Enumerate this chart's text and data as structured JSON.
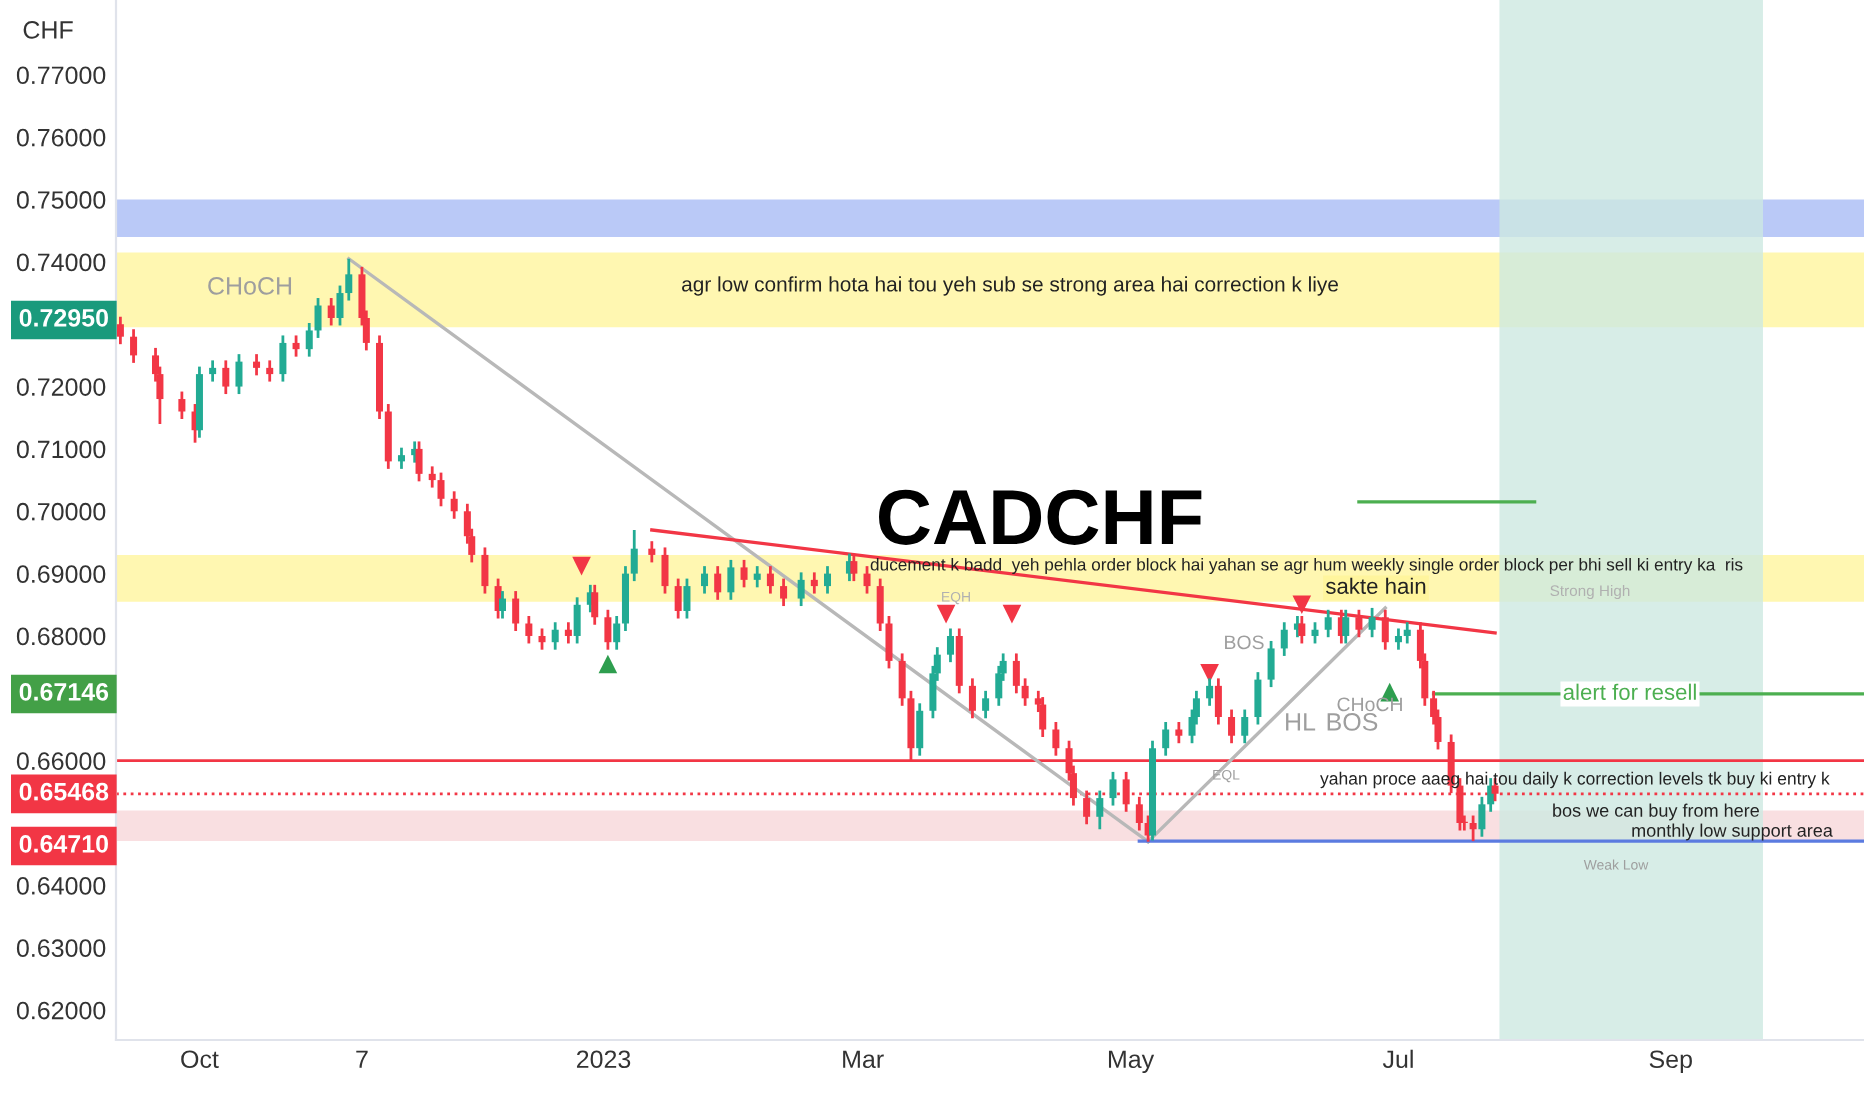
{
  "chart_data": {
    "type": "candlestick",
    "title": "CADCHF",
    "ylabel": "CHF",
    "x": [
      "2022-09-13",
      "2022-09-16",
      "2022-09-21",
      "2022-09-22",
      "2022-09-27",
      "2022-09-30",
      "2022-10-01",
      "2022-10-04",
      "2022-10-07",
      "2022-10-10",
      "2022-10-14",
      "2022-10-17",
      "2022-10-20",
      "2022-10-23",
      "2022-10-26",
      "2022-10-28",
      "2022-10-31",
      "2022-11-02",
      "2022-11-04",
      "2022-11-07",
      "2022-11-08",
      "2022-11-11",
      "2022-11-13",
      "2022-11-16",
      "2022-11-19",
      "2022-11-20",
      "2022-11-23",
      "2022-11-25",
      "2022-11-28",
      "2022-12-01",
      "2022-12-02",
      "2022-12-05",
      "2022-12-08",
      "2022-12-09",
      "2022-12-12",
      "2022-12-15",
      "2022-12-18",
      "2022-12-21",
      "2022-12-24",
      "2022-12-26",
      "2022-12-29",
      "2022-12-30",
      "2023-01-02",
      "2023-01-04",
      "2023-01-06",
      "2023-01-08",
      "2023-01-12",
      "2023-01-15",
      "2023-01-18",
      "2023-01-20",
      "2023-01-24",
      "2023-01-27",
      "2023-01-30",
      "2023-02-02",
      "2023-02-05",
      "2023-02-08",
      "2023-02-11",
      "2023-02-15",
      "2023-02-18",
      "2023-02-21",
      "2023-02-26",
      "2023-02-27",
      "2023-03-02",
      "2023-03-05",
      "2023-03-07",
      "2023-03-10",
      "2023-03-12",
      "2023-03-14",
      "2023-03-17",
      "2023-03-18",
      "2023-03-21",
      "2023-03-23",
      "2023-03-26",
      "2023-03-29",
      "2023-04-01",
      "2023-04-02",
      "2023-04-05",
      "2023-04-07",
      "2023-04-10",
      "2023-04-11",
      "2023-04-14",
      "2023-04-17",
      "2023-04-18",
      "2023-04-21",
      "2023-04-24",
      "2023-04-27",
      "2023-04-30",
      "2023-05-03",
      "2023-05-05",
      "2023-05-06",
      "2023-05-09",
      "2023-05-12",
      "2023-05-15",
      "2023-05-16",
      "2023-05-19",
      "2023-05-21",
      "2023-05-24",
      "2023-05-27",
      "2023-05-30",
      "2023-06-02",
      "2023-06-05",
      "2023-06-08",
      "2023-06-09",
      "2023-06-12",
      "2023-06-15",
      "2023-06-18",
      "2023-06-19",
      "2023-06-22",
      "2023-06-25",
      "2023-06-28",
      "2023-07-01",
      "2023-07-03",
      "2023-07-06",
      "2023-07-07",
      "2023-07-09",
      "2023-07-10",
      "2023-07-13",
      "2023-07-15",
      "2023-07-16",
      "2023-07-18",
      "2023-07-20",
      "2023-07-22",
      "2023-07-23"
    ],
    "ohlc": [
      [
        0.73,
        0.7312,
        0.7268,
        0.728
      ],
      [
        0.728,
        0.7292,
        0.7238,
        0.725
      ],
      [
        0.725,
        0.7262,
        0.7208,
        0.722
      ],
      [
        0.722,
        0.7232,
        0.714,
        0.718
      ],
      [
        0.718,
        0.7192,
        0.7148,
        0.716
      ],
      [
        0.716,
        0.7172,
        0.711,
        0.713
      ],
      [
        0.713,
        0.7232,
        0.7118,
        0.722
      ],
      [
        0.722,
        0.7242,
        0.7208,
        0.723
      ],
      [
        0.723,
        0.7242,
        0.7188,
        0.72
      ],
      [
        0.72,
        0.7252,
        0.7188,
        0.724
      ],
      [
        0.724,
        0.7252,
        0.7218,
        0.723
      ],
      [
        0.723,
        0.7242,
        0.7208,
        0.722
      ],
      [
        0.722,
        0.7282,
        0.7208,
        0.727
      ],
      [
        0.727,
        0.7282,
        0.7248,
        0.726
      ],
      [
        0.726,
        0.7302,
        0.7248,
        0.729
      ],
      [
        0.729,
        0.7342,
        0.7278,
        0.733
      ],
      [
        0.733,
        0.7342,
        0.7298,
        0.731
      ],
      [
        0.731,
        0.7362,
        0.7298,
        0.735
      ],
      [
        0.735,
        0.7405,
        0.7338,
        0.738
      ],
      [
        0.738,
        0.7392,
        0.7298,
        0.731
      ],
      [
        0.731,
        0.7322,
        0.7258,
        0.727
      ],
      [
        0.727,
        0.7282,
        0.7148,
        0.716
      ],
      [
        0.716,
        0.7172,
        0.7068,
        0.708
      ],
      [
        0.708,
        0.7102,
        0.7068,
        0.709
      ],
      [
        0.709,
        0.7112,
        0.7078,
        0.71
      ],
      [
        0.71,
        0.7112,
        0.7048,
        0.706
      ],
      [
        0.706,
        0.7072,
        0.7038,
        0.705
      ],
      [
        0.705,
        0.7062,
        0.7008,
        0.702
      ],
      [
        0.702,
        0.7032,
        0.6988,
        0.7
      ],
      [
        0.7,
        0.7012,
        0.6948,
        0.696
      ],
      [
        0.696,
        0.6972,
        0.6918,
        0.693
      ],
      [
        0.693,
        0.6942,
        0.6868,
        0.688
      ],
      [
        0.688,
        0.6892,
        0.6828,
        0.684
      ],
      [
        0.684,
        0.6872,
        0.6828,
        0.686
      ],
      [
        0.686,
        0.6872,
        0.6808,
        0.682
      ],
      [
        0.682,
        0.6832,
        0.6788,
        0.68
      ],
      [
        0.68,
        0.6812,
        0.6778,
        0.679
      ],
      [
        0.679,
        0.6822,
        0.6778,
        0.681
      ],
      [
        0.681,
        0.6822,
        0.6788,
        0.68
      ],
      [
        0.68,
        0.6862,
        0.6788,
        0.685
      ],
      [
        0.685,
        0.6882,
        0.6838,
        0.687
      ],
      [
        0.687,
        0.6882,
        0.6818,
        0.683
      ],
      [
        0.683,
        0.6842,
        0.6778,
        0.679
      ],
      [
        0.679,
        0.6832,
        0.6778,
        0.682
      ],
      [
        0.682,
        0.6912,
        0.6808,
        0.69
      ],
      [
        0.69,
        0.697,
        0.6888,
        0.694
      ],
      [
        0.694,
        0.6952,
        0.6918,
        0.693
      ],
      [
        0.693,
        0.6942,
        0.6868,
        0.688
      ],
      [
        0.688,
        0.6892,
        0.6828,
        0.684
      ],
      [
        0.684,
        0.6892,
        0.6828,
        0.688
      ],
      [
        0.688,
        0.6912,
        0.6868,
        0.69
      ],
      [
        0.69,
        0.6912,
        0.6858,
        0.687
      ],
      [
        0.687,
        0.6922,
        0.6858,
        0.691
      ],
      [
        0.691,
        0.6922,
        0.6878,
        0.689
      ],
      [
        0.689,
        0.6912,
        0.6878,
        0.69
      ],
      [
        0.69,
        0.6912,
        0.6868,
        0.688
      ],
      [
        0.688,
        0.6892,
        0.6848,
        0.686
      ],
      [
        0.686,
        0.6902,
        0.6848,
        0.689
      ],
      [
        0.689,
        0.6902,
        0.6868,
        0.688
      ],
      [
        0.688,
        0.6912,
        0.6868,
        0.69
      ],
      [
        0.69,
        0.6932,
        0.6888,
        0.692
      ],
      [
        0.692,
        0.6932,
        0.6888,
        0.69
      ],
      [
        0.69,
        0.6912,
        0.6868,
        0.688
      ],
      [
        0.688,
        0.6892,
        0.6808,
        0.682
      ],
      [
        0.682,
        0.6832,
        0.6748,
        0.676
      ],
      [
        0.676,
        0.6772,
        0.6688,
        0.67
      ],
      [
        0.67,
        0.6712,
        0.66,
        0.662
      ],
      [
        0.662,
        0.6692,
        0.6608,
        0.668
      ],
      [
        0.668,
        0.6752,
        0.6668,
        0.674
      ],
      [
        0.674,
        0.6782,
        0.6728,
        0.677
      ],
      [
        0.677,
        0.6812,
        0.6758,
        0.68
      ],
      [
        0.68,
        0.6812,
        0.6708,
        0.672
      ],
      [
        0.672,
        0.6732,
        0.6668,
        0.668
      ],
      [
        0.668,
        0.6712,
        0.6668,
        0.67
      ],
      [
        0.67,
        0.6752,
        0.6688,
        0.674
      ],
      [
        0.674,
        0.6772,
        0.6728,
        0.676
      ],
      [
        0.676,
        0.6772,
        0.6708,
        0.672
      ],
      [
        0.672,
        0.6732,
        0.6688,
        0.67
      ],
      [
        0.67,
        0.6712,
        0.6678,
        0.669
      ],
      [
        0.669,
        0.6702,
        0.6638,
        0.665
      ],
      [
        0.665,
        0.6662,
        0.6608,
        0.662
      ],
      [
        0.662,
        0.6632,
        0.6568,
        0.658
      ],
      [
        0.658,
        0.6592,
        0.6528,
        0.654
      ],
      [
        0.654,
        0.6552,
        0.6498,
        0.651
      ],
      [
        0.651,
        0.6552,
        0.649,
        0.654
      ],
      [
        0.654,
        0.6582,
        0.6528,
        0.657
      ],
      [
        0.657,
        0.6582,
        0.6518,
        0.653
      ],
      [
        0.653,
        0.6542,
        0.6488,
        0.65
      ],
      [
        0.65,
        0.6512,
        0.647,
        0.648
      ],
      [
        0.648,
        0.6632,
        0.6472,
        0.662
      ],
      [
        0.662,
        0.6662,
        0.6608,
        0.665
      ],
      [
        0.665,
        0.6662,
        0.6628,
        0.664
      ],
      [
        0.664,
        0.6682,
        0.6628,
        0.667
      ],
      [
        0.667,
        0.6712,
        0.6658,
        0.67
      ],
      [
        0.67,
        0.6732,
        0.6688,
        0.672
      ],
      [
        0.672,
        0.6732,
        0.6658,
        0.667
      ],
      [
        0.667,
        0.6682,
        0.6628,
        0.664
      ],
      [
        0.664,
        0.6682,
        0.6628,
        0.667
      ],
      [
        0.667,
        0.6742,
        0.6658,
        0.673
      ],
      [
        0.673,
        0.6792,
        0.6718,
        0.678
      ],
      [
        0.678,
        0.6822,
        0.6768,
        0.681
      ],
      [
        0.681,
        0.6832,
        0.6798,
        0.682
      ],
      [
        0.682,
        0.6832,
        0.6788,
        0.68
      ],
      [
        0.68,
        0.6822,
        0.6788,
        0.681
      ],
      [
        0.681,
        0.6842,
        0.6798,
        0.683
      ],
      [
        0.683,
        0.6842,
        0.6788,
        0.68
      ],
      [
        0.68,
        0.6842,
        0.6788,
        0.683
      ],
      [
        0.683,
        0.6842,
        0.6798,
        0.681
      ],
      [
        0.681,
        0.6845,
        0.6798,
        0.683
      ],
      [
        0.683,
        0.6842,
        0.6778,
        0.679
      ],
      [
        0.679,
        0.6812,
        0.6778,
        0.68
      ],
      [
        0.68,
        0.6822,
        0.6788,
        0.681
      ],
      [
        0.681,
        0.6822,
        0.6748,
        0.676
      ],
      [
        0.676,
        0.6772,
        0.6688,
        0.67
      ],
      [
        0.67,
        0.6712,
        0.6658,
        0.667
      ],
      [
        0.667,
        0.6682,
        0.6618,
        0.663
      ],
      [
        0.663,
        0.6642,
        0.6548,
        0.656
      ],
      [
        0.656,
        0.6572,
        0.6488,
        0.65
      ],
      [
        0.65,
        0.6512,
        0.6488,
        0.65
      ],
      [
        0.65,
        0.6512,
        0.6471,
        0.649
      ],
      [
        0.649,
        0.6542,
        0.6478,
        0.653
      ],
      [
        0.653,
        0.6572,
        0.6518,
        0.656
      ],
      [
        0.656,
        0.6572,
        0.6535,
        0.6547
      ]
    ],
    "colors": [
      "#f23645",
      "#f23645",
      "#f23645",
      "#f23645",
      "#f23645",
      "#f23645",
      "#22ab94",
      "#22ab94",
      "#f23645",
      "#22ab94",
      "#f23645",
      "#f23645",
      "#22ab94",
      "#f23645",
      "#22ab94",
      "#22ab94",
      "#f23645",
      "#22ab94",
      "#22ab94",
      "#f23645",
      "#f23645",
      "#f23645",
      "#f23645",
      "#22ab94",
      "#22ab94",
      "#f23645",
      "#f23645",
      "#f23645",
      "#f23645",
      "#f23645",
      "#f23645",
      "#f23645",
      "#f23645",
      "#22ab94",
      "#f23645",
      "#f23645",
      "#f23645",
      "#22ab94",
      "#f23645",
      "#22ab94",
      "#22ab94",
      "#f23645",
      "#f23645",
      "#22ab94",
      "#22ab94",
      "#22ab94",
      "#f23645",
      "#f23645",
      "#f23645",
      "#22ab94",
      "#22ab94",
      "#f23645",
      "#22ab94",
      "#f23645",
      "#22ab94",
      "#f23645",
      "#f23645",
      "#22ab94",
      "#f23645",
      "#22ab94",
      "#22ab94",
      "#f23645",
      "#f23645",
      "#f23645",
      "#f23645",
      "#f23645",
      "#f23645",
      "#22ab94",
      "#22ab94",
      "#22ab94",
      "#22ab94",
      "#f23645",
      "#f23645",
      "#22ab94",
      "#22ab94",
      "#22ab94",
      "#f23645",
      "#f23645",
      "#f23645",
      "#f23645",
      "#f23645",
      "#f23645",
      "#f23645",
      "#f23645",
      "#22ab94",
      "#22ab94",
      "#f23645",
      "#f23645",
      "#f23645",
      "#22ab94",
      "#22ab94",
      "#f23645",
      "#22ab94",
      "#22ab94",
      "#22ab94",
      "#f23645",
      "#f23645",
      "#22ab94",
      "#22ab94",
      "#22ab94",
      "#22ab94",
      "#22ab94",
      "#f23645",
      "#22ab94",
      "#22ab94",
      "#f23645",
      "#22ab94",
      "#f23645",
      "#22ab94",
      "#f23645",
      "#22ab94",
      "#22ab94",
      "#f23645",
      "#f23645",
      "#f23645",
      "#f23645",
      "#f23645",
      "#f23645",
      "#f23645",
      "#f23645",
      "#22ab94",
      "#22ab94",
      "#f23645"
    ],
    "series": [
      {
        "type": "line",
        "color": "#b8b8b8",
        "x": [
          "2022-11-04",
          "2023-05-05"
        ],
        "values": [
          0.7405,
          0.647
        ]
      },
      {
        "type": "line",
        "color": "#b8b8b8",
        "x": [
          "2023-05-05",
          "2023-06-28"
        ],
        "values": [
          0.647,
          0.6845
        ]
      },
      {
        "type": "line",
        "color": "#f23645",
        "x": [
          "2023-01-12",
          "2023-07-23"
        ],
        "values": [
          0.697,
          0.6805
        ]
      },
      {
        "type": "line",
        "color": "#4caf50",
        "x": [
          "2023-06-22",
          "2023-08-01"
        ],
        "values": [
          0.7015,
          0.7015
        ]
      },
      {
        "type": "line",
        "color": "#4caf50",
        "x": [
          "2023-07-09",
          "2023-10-15"
        ],
        "values": [
          0.6707,
          0.6707
        ]
      },
      {
        "type": "line",
        "color": "#5b7be0",
        "x": [
          "2023-05-03",
          "2023-10-15"
        ],
        "values": [
          0.6471,
          0.6471
        ]
      },
      {
        "type": "scatter",
        "marker": "triangle_down",
        "color": "#f23645",
        "x": [
          "2022-12-27",
          "2023-03-20",
          "2023-04-04",
          "2023-05-19",
          "2023-06-09"
        ],
        "values": [
          0.6912,
          0.6835,
          0.6835,
          0.674,
          0.685
        ]
      },
      {
        "type": "scatter",
        "marker": "triangle",
        "color": "#2e9e4f",
        "x": [
          "2023-01-02",
          "2023-06-29"
        ],
        "values": [
          0.6755,
          0.671
        ]
      }
    ],
    "bands": [
      {
        "axis": "y",
        "from": 0.744,
        "to": 0.75,
        "color": "#a9bcf5"
      },
      {
        "axis": "y",
        "from": 0.7295,
        "to": 0.7415,
        "color": "#fff59d"
      },
      {
        "axis": "y",
        "from": 0.6855,
        "to": 0.693,
        "color": "#fff59d"
      },
      {
        "axis": "y",
        "from": 0.6471,
        "to": 0.652,
        "color": "#f8d7da"
      },
      {
        "axis": "x",
        "from": "2023-07-24",
        "to": "2023-09-22",
        "color": "#cde9e1"
      }
    ],
    "ref_lines": [
      {
        "axis": "y",
        "value": 0.66,
        "color": "#f23645",
        "line_style": "solid"
      },
      {
        "axis": "y",
        "value": 0.65468,
        "label": "0.65468",
        "color": "#f23645",
        "line_style": "dotted"
      }
    ],
    "annotations": [
      "CHoCH",
      "agr low confirm hota hai tou yeh sub se strong area hai correction k liye",
      "ducement k badd  yeh pehla order block hai yahan se agr hum weekly single order block per bhi sell ki entry ka  ris",
      "sakte hain",
      "EQH",
      "Strong High",
      "BOS",
      "HL",
      "BOS",
      "CHoCH",
      "alert for resell",
      "EQL",
      "yahan proce aaeg hai tou daily k correction levels tk buy ki entry k",
      "bos we can buy from here",
      "monthly low support area",
      "Weak Low",
      "0.72950",
      "0.67146",
      "0.64710"
    ],
    "xlim": [
      "2022-09-12",
      "2023-10-15"
    ],
    "xticks": [
      {
        "value": "2022-10-01",
        "label": "Oct"
      },
      {
        "value": "2022-11-07",
        "label": "7"
      },
      {
        "value": "2023-01-01",
        "label": "2023"
      },
      {
        "value": "2023-03-01",
        "label": "Mar"
      },
      {
        "value": "2023-05-01",
        "label": "May"
      },
      {
        "value": "2023-07-01",
        "label": "Jul"
      },
      {
        "value": "2023-09-01",
        "label": "Sep"
      }
    ],
    "ylim": [
      0.6152,
      0.782
    ],
    "yticks": [
      {
        "value": 0.62,
        "label": "0.62000"
      },
      {
        "value": 0.63,
        "label": "0.63000"
      },
      {
        "value": 0.64,
        "label": "0.64000"
      },
      {
        "value": 0.66,
        "label": "0.66000"
      },
      {
        "value": 0.68,
        "label": "0.68000"
      },
      {
        "value": 0.69,
        "label": "0.69000"
      },
      {
        "value": 0.7,
        "label": "0.70000"
      },
      {
        "value": 0.71,
        "label": "0.71000"
      },
      {
        "value": 0.72,
        "label": "0.72000"
      },
      {
        "value": 0.74,
        "label": "0.74000"
      },
      {
        "value": 0.75,
        "label": "0.75000"
      },
      {
        "value": 0.76,
        "label": "0.76000"
      },
      {
        "value": 0.77,
        "label": "0.77000"
      }
    ],
    "grid": false,
    "legend": false
  }
}
